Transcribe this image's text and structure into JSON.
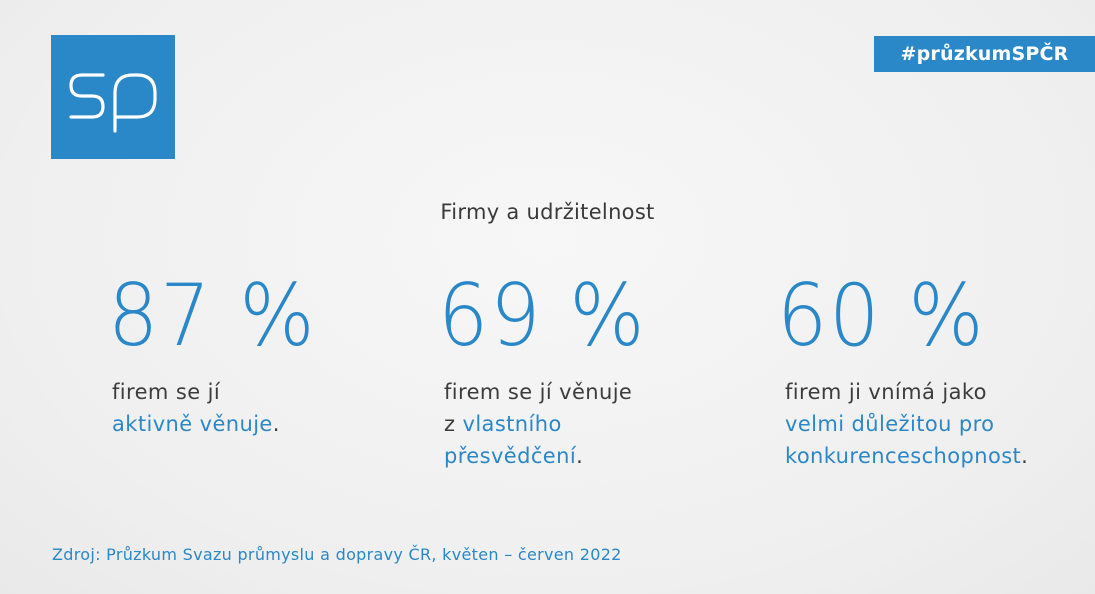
{
  "brand": {
    "logo_text": "sp",
    "hashtag": "#průzkumSPČR",
    "accent_color": "#2a87c8"
  },
  "title": "Firmy a udržitelnost",
  "stats": [
    {
      "value": "87 %",
      "line1": "firem se jí",
      "line2_highlight": "aktivně věnuje",
      "line2_tail": "."
    },
    {
      "value": "69 %",
      "line1": "firem se jí věnuje",
      "line2_prefix": "z ",
      "line2_highlight": "vlastního",
      "line3_highlight": "přesvědčení",
      "line3_tail": "."
    },
    {
      "value": "60 %",
      "line1": "firem ji vnímá jako",
      "line2_highlight": "velmi důležitou pro",
      "line3_highlight": "konkurenceschopnost",
      "line3_tail": "."
    }
  ],
  "source": "Zdroj: Průzkum Svazu průmyslu a dopravy ČR, květen – červen 2022"
}
